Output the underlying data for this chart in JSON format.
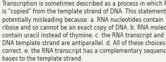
{
  "text": "Transcription is sometimes described as a process in which RNA\nis \"copied\" from the template strand of DNA. This statement is\npotentially misleading because: a. RNA nucleotides contain\nribose and so cannot be an exact copy of DNA. b. RNA molecules\ncontain uracil instead of thymine. c. the RNA transcript and the\nDNA template strand are antiparallel. d. All of these choices are\ncorrect. e. the RNA transcript has a complementary sequence of\nbases to the template strand.",
  "font_size": 5.5,
  "text_color": "#2a2a2a",
  "bg_color": "#f5f3ef",
  "font_family": "DejaVu Sans"
}
